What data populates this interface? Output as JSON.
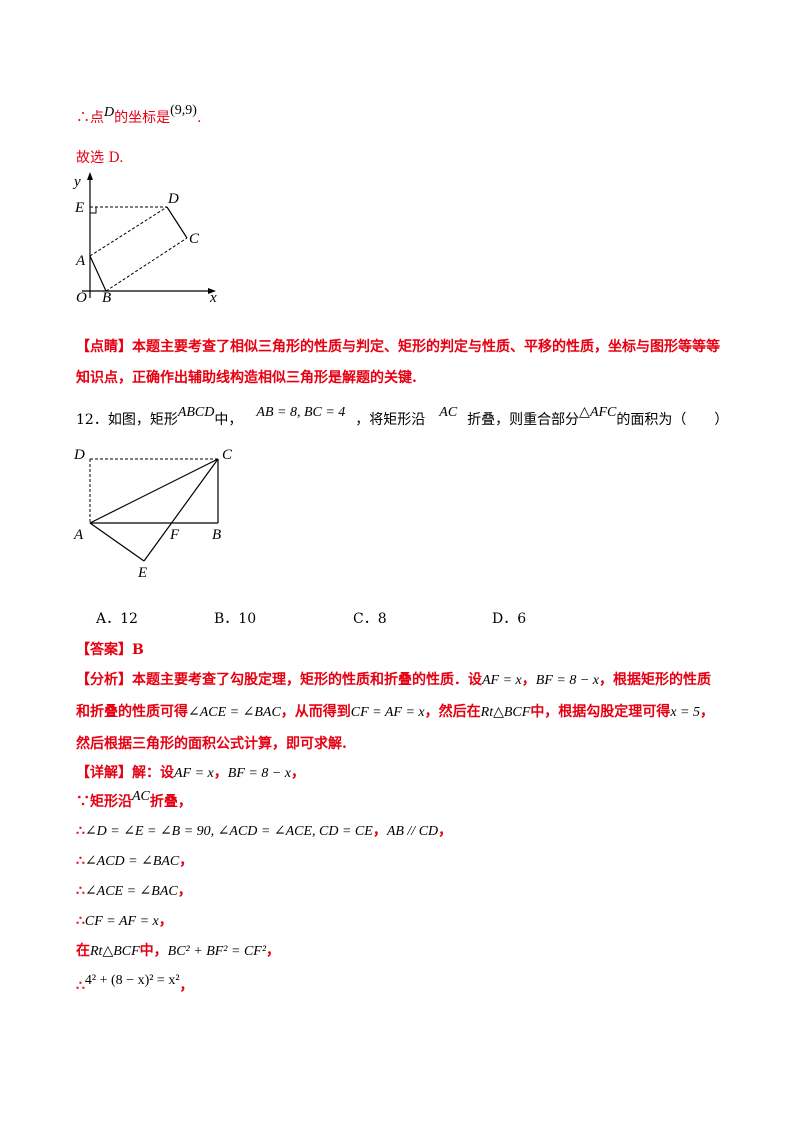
{
  "prev": {
    "conclusion_prefix": "∴点",
    "conclusion_var": "D",
    "conclusion_mid": "的坐标是",
    "conclusion_coord": "(9,9)",
    "conclusion_end": ".",
    "choose": "故选 D.",
    "fig1_labels": {
      "y": "y",
      "E": "E",
      "D": "D",
      "C": "C",
      "A": "A",
      "O": "O",
      "B": "B",
      "x": "x"
    },
    "note_line1": "【点睛】本题主要考查了相似三角形的性质与判定、矩形的判定与性质、平移的性质，坐标与图形等等等",
    "note_line2": "知识点，正确作出辅助线构造相似三角形是解题的关键."
  },
  "question": {
    "num_text": "12．如图，矩形",
    "rect": "ABCD",
    "in": "中，",
    "given": "AB = 8, BC = 4",
    "comma_fold": "，将矩形沿",
    "fold_line": "AC",
    "rest": "折叠，则重合部分",
    "tri": "△AFC",
    "ask": "的面积为（　　）",
    "fig2_labels": {
      "D": "D",
      "C": "C",
      "A": "A",
      "F": "F",
      "B": "B",
      "E": "E"
    },
    "choices": [
      "A．12",
      "B．10",
      "C．8",
      "D．6"
    ]
  },
  "answer": {
    "label": "【答案】B"
  },
  "analysis": {
    "l1_a": "【分析】本题主要考查了勾股定理，矩形的性质和折叠的性质．设",
    "l1_m1": "AF = x",
    "l1_b": "，",
    "l1_m2": "BF = 8 − x",
    "l1_c": "，根据矩形的性质",
    "l2_a": "和折叠的性质可得",
    "l2_m1": "∠ACE = ∠BAC",
    "l2_b": "，从而得到",
    "l2_m2": "CF = AF = x",
    "l2_c": "，然后在",
    "l2_m3": "Rt△BCF",
    "l2_d": "中，根据勾股定理可得",
    "l2_m4": "x = 5",
    "l2_e": "，",
    "l3": "然后根据三角形的面积公式计算，即可求解."
  },
  "detail": {
    "d1_a": "【详解】解：设",
    "d1_m1": "AF = x",
    "d1_b": "，",
    "d1_m2": "BF = 8 − x",
    "d1_c": "，",
    "d2_a": "∵矩形沿",
    "d2_m": "AC",
    "d2_b": "折叠，",
    "d3_a": "∴",
    "d3_m1": "∠D = ∠E = ∠B = 90, ∠ACD = ∠ACE, CD = CE",
    "d3_b": "，",
    "d3_m2": "AB // CD",
    "d3_c": "，",
    "d4_a": "∴",
    "d4_m": "∠ACD = ∠BAC",
    "d4_b": "，",
    "d5_a": "∴",
    "d5_m": "∠ACE = ∠BAC",
    "d5_b": "，",
    "d6_a": "∴",
    "d6_m": "CF = AF = x",
    "d6_b": "，",
    "d7_a": "在",
    "d7_m1": "Rt△BCF",
    "d7_b": "中，",
    "d7_m2": "BC² + BF² = CF²",
    "d7_c": "，",
    "d8_a": "∴",
    "d8_m": "4² + (8 − x)² = x²",
    "d8_b": "，"
  }
}
